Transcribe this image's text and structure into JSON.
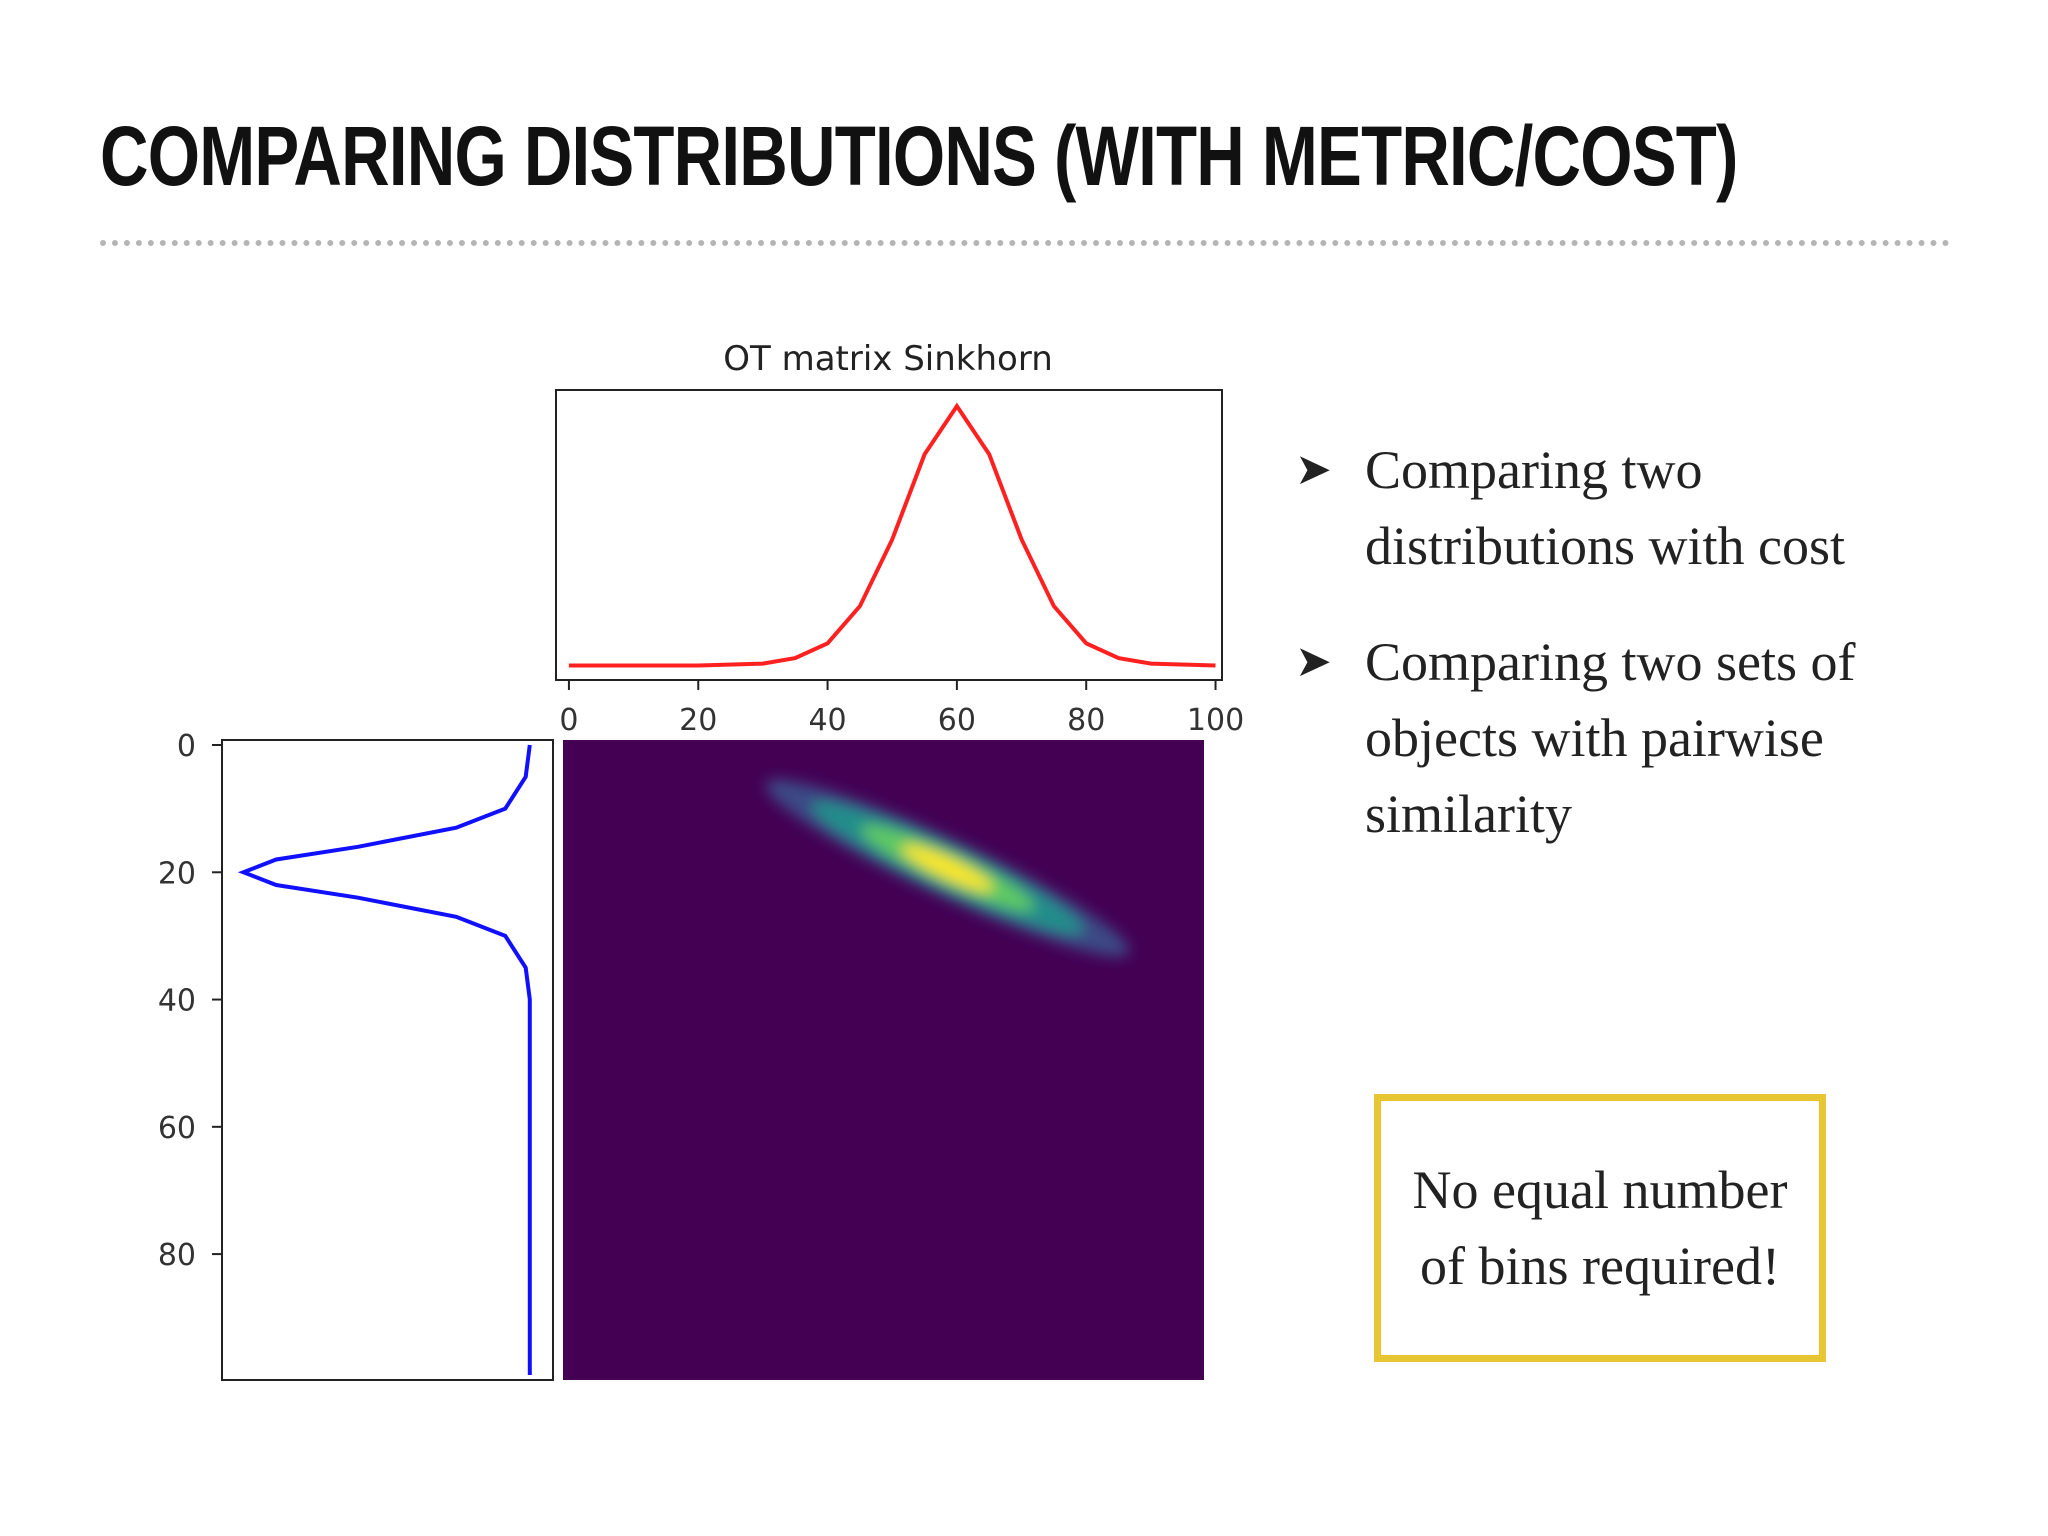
{
  "slide": {
    "title": "COMPARING DISTRIBUTIONS (WITH METRIC/COST)",
    "bullets": [
      {
        "icon": "arrow-bullet-icon",
        "text": "Comparing two distributions with cost"
      },
      {
        "icon": "arrow-bullet-icon",
        "text": "Comparing two sets of objects with pairwise similarity"
      }
    ],
    "note": "No equal number of bins required!",
    "bullet_glyph": "➤",
    "colors": {
      "note_border": "#e8c633",
      "divider": "#b5b5b5"
    }
  },
  "chart_data": [
    {
      "type": "line",
      "title": "OT matrix Sinkhorn",
      "series": [
        {
          "color": "#ff2020",
          "x": [
            0,
            10,
            20,
            30,
            35,
            40,
            45,
            50,
            55,
            60,
            65,
            70,
            75,
            80,
            85,
            90,
            100
          ],
          "y": [
            0.0,
            0.0,
            0.0,
            0.005,
            0.02,
            0.06,
            0.16,
            0.34,
            0.57,
            0.7,
            0.57,
            0.34,
            0.16,
            0.06,
            0.02,
            0.005,
            0.0
          ]
        }
      ],
      "xticks": [
        0,
        20,
        40,
        60,
        80,
        100
      ],
      "xlim": [
        -2,
        101
      ],
      "grid": false
    },
    {
      "type": "line",
      "orientation": "vertical",
      "series": [
        {
          "color": "#1010ff",
          "y": [
            0,
            5,
            10,
            13,
            16,
            18,
            20,
            22,
            24,
            27,
            30,
            35,
            40,
            60,
            80,
            99
          ],
          "x": [
            0.0,
            0.01,
            0.06,
            0.18,
            0.42,
            0.62,
            0.7,
            0.62,
            0.42,
            0.18,
            0.06,
            0.01,
            0.0,
            0.0,
            0.0,
            0.0
          ]
        }
      ],
      "yticks": [
        0,
        20,
        40,
        60,
        80
      ],
      "ylim": [
        0,
        99
      ],
      "grid": false
    },
    {
      "type": "heatmap",
      "colormap": "viridis",
      "rows": 100,
      "cols": 100,
      "peak": {
        "row": 20,
        "col": 60
      },
      "description_colors": {
        "background": "#440154",
        "peak": "#fde725"
      }
    }
  ]
}
